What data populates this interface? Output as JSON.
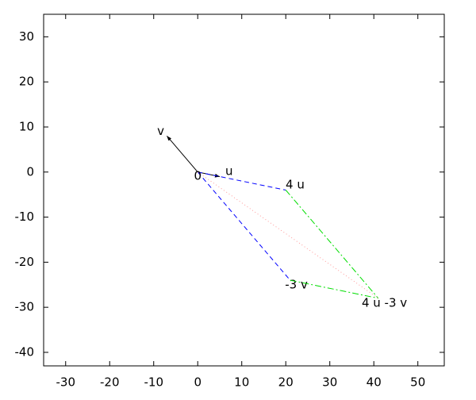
{
  "chart_data": {
    "type": "vector",
    "origin_label": "0",
    "vectors": [
      {
        "label": "u",
        "start": [
          0,
          0
        ],
        "end": [
          5,
          -1
        ],
        "color": "#000000",
        "style": "solid",
        "arrow": true
      },
      {
        "label": "v",
        "start": [
          0,
          0
        ],
        "end": [
          -7,
          8
        ],
        "color": "#000000",
        "style": "solid",
        "arrow": true
      },
      {
        "label": "4 u",
        "start": [
          0,
          0
        ],
        "end": [
          20,
          -4
        ],
        "color": "#0000ff",
        "style": "dashed",
        "arrow": false
      },
      {
        "label": "-3 v",
        "start": [
          0,
          0
        ],
        "end": [
          21,
          -24
        ],
        "color": "#0000ff",
        "style": "dashed",
        "arrow": false
      },
      {
        "label": "4 u -3 v",
        "start": [
          20,
          -4
        ],
        "end": [
          41,
          -28
        ],
        "color": "#00dd00",
        "style": "dashdot",
        "arrow": false
      },
      {
        "start": [
          21,
          -24
        ],
        "end": [
          41,
          -28
        ],
        "color": "#00dd00",
        "style": "dashdot",
        "arrow": false
      },
      {
        "start": [
          0,
          0
        ],
        "end": [
          41,
          -28
        ],
        "color": "#ff9999",
        "style": "dotted",
        "arrow": false
      }
    ],
    "xlim": [
      -35,
      56
    ],
    "ylim": [
      -43,
      35
    ],
    "xticks": [
      -30,
      -20,
      -10,
      0,
      10,
      20,
      30,
      40,
      50
    ],
    "yticks": [
      -40,
      -30,
      -20,
      -10,
      0,
      10,
      20,
      30
    ],
    "grid": false
  }
}
